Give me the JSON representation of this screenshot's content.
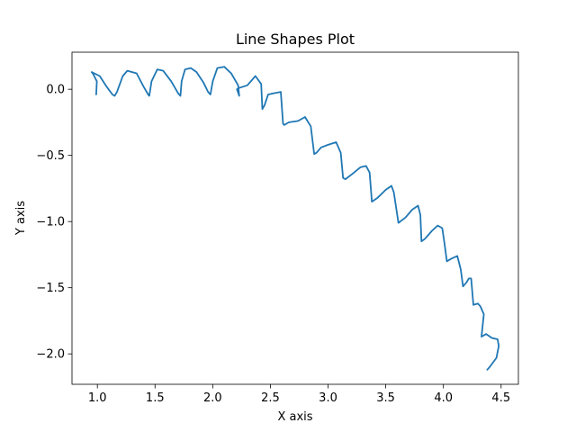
{
  "chart_data": {
    "type": "line",
    "title": "Line Shapes Plot",
    "xlabel": "X axis",
    "ylabel": "Y axis",
    "xlim": [
      0.78,
      4.65
    ],
    "ylim": [
      -2.23,
      0.28
    ],
    "xticks": [
      1.0,
      1.5,
      2.0,
      2.5,
      3.0,
      3.5,
      4.0,
      4.5
    ],
    "xtick_labels": [
      "1.0",
      "1.5",
      "2.0",
      "2.5",
      "3.0",
      "3.5",
      "4.0",
      "4.5"
    ],
    "yticks": [
      0.0,
      -0.5,
      -1.0,
      -1.5,
      -2.0
    ],
    "ytick_labels": [
      "0.0",
      "−0.5",
      "−1.0",
      "−1.5",
      "−2.0"
    ],
    "grid": false,
    "series": [
      {
        "color": "#1f77b4",
        "x": [
          0.99,
          0.995,
          0.96,
          0.95,
          1.02,
          1.08,
          1.13,
          1.15,
          1.17,
          1.22,
          1.26,
          1.34,
          1.4,
          1.44,
          1.45,
          1.47,
          1.52,
          1.57,
          1.64,
          1.7,
          1.72,
          1.73,
          1.76,
          1.81,
          1.86,
          1.92,
          1.96,
          1.98,
          2.0,
          2.04,
          2.1,
          2.16,
          2.22,
          2.23,
          2.21,
          2.23,
          2.3,
          2.37,
          2.42,
          2.43,
          2.45,
          2.48,
          2.53,
          2.59,
          2.61,
          2.62,
          2.66,
          2.74,
          2.8,
          2.85,
          2.88,
          2.9,
          2.94,
          3.0,
          3.07,
          3.11,
          3.13,
          3.15,
          3.21,
          3.28,
          3.33,
          3.36,
          3.38,
          3.43,
          3.5,
          3.55,
          3.57,
          3.61,
          3.67,
          3.73,
          3.78,
          3.8,
          3.81,
          3.84,
          3.9,
          3.95,
          3.99,
          4.01,
          4.03,
          4.07,
          4.12,
          4.15,
          4.17,
          4.2,
          4.22,
          4.24,
          4.26,
          4.3,
          4.32,
          4.35,
          4.33,
          4.37,
          4.42,
          4.47,
          4.48,
          4.46,
          4.4,
          4.38
        ],
        "y": [
          -0.04,
          0.06,
          0.12,
          0.13,
          0.1,
          0.02,
          -0.04,
          -0.05,
          -0.02,
          0.1,
          0.14,
          0.12,
          0.02,
          -0.04,
          -0.05,
          0.06,
          0.15,
          0.14,
          0.06,
          -0.03,
          -0.05,
          0.06,
          0.15,
          0.16,
          0.13,
          0.05,
          -0.02,
          -0.04,
          0.06,
          0.16,
          0.17,
          0.12,
          0.03,
          -0.05,
          0.0,
          0.01,
          0.03,
          0.1,
          0.04,
          -0.15,
          -0.12,
          -0.04,
          -0.03,
          -0.02,
          -0.26,
          -0.27,
          -0.25,
          -0.24,
          -0.21,
          -0.28,
          -0.49,
          -0.48,
          -0.44,
          -0.42,
          -0.4,
          -0.48,
          -0.67,
          -0.68,
          -0.64,
          -0.59,
          -0.58,
          -0.63,
          -0.85,
          -0.82,
          -0.76,
          -0.73,
          -0.78,
          -1.01,
          -0.97,
          -0.91,
          -0.88,
          -0.95,
          -1.15,
          -1.13,
          -1.07,
          -1.03,
          -1.05,
          -1.17,
          -1.3,
          -1.28,
          -1.26,
          -1.36,
          -1.49,
          -1.46,
          -1.43,
          -1.43,
          -1.63,
          -1.62,
          -1.64,
          -1.7,
          -1.87,
          -1.85,
          -1.88,
          -1.89,
          -1.94,
          -2.03,
          -2.1,
          -2.12
        ]
      }
    ]
  }
}
